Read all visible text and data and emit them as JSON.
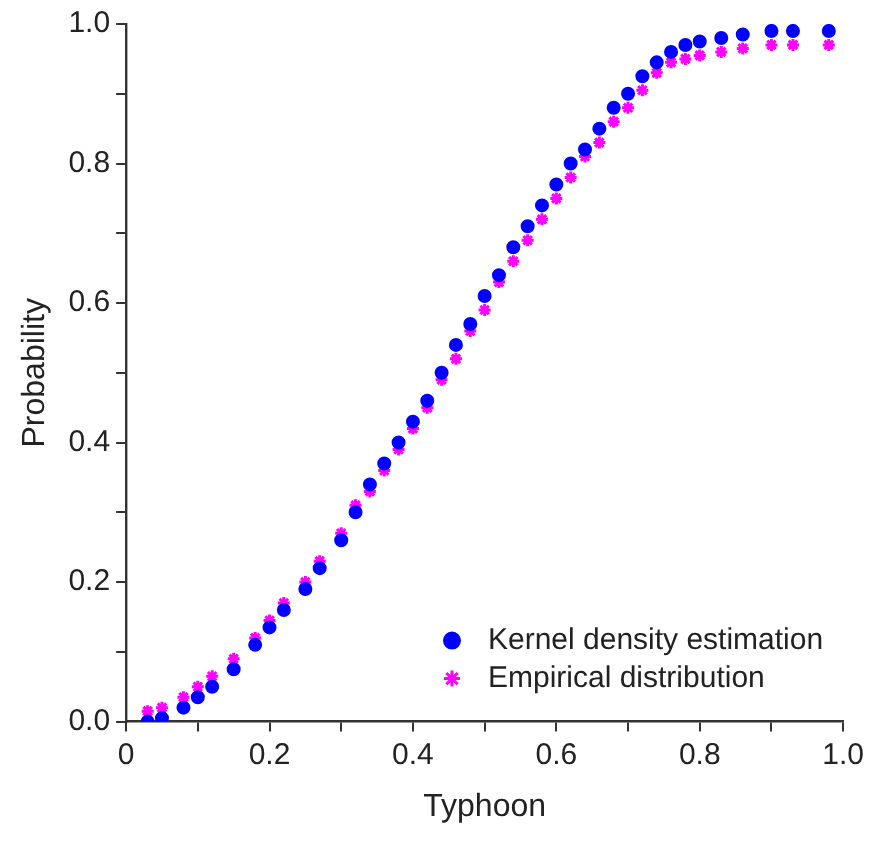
{
  "chart_data": {
    "type": "scatter",
    "xlabel": "Typhoon",
    "ylabel": "Probability",
    "xlim": [
      0,
      1
    ],
    "ylim": [
      0,
      1
    ],
    "xticks": [
      0,
      {
        "value": 0.1,
        "label": null
      },
      {
        "value": 0.2,
        "label": "0.2"
      },
      {
        "value": 0.3,
        "label": null
      },
      {
        "value": 0.4,
        "label": "0.4"
      },
      {
        "value": 0.5,
        "label": null
      },
      {
        "value": 0.6,
        "label": "0.6"
      },
      {
        "value": 0.7,
        "label": null
      },
      {
        "value": 0.8,
        "label": "0.8"
      },
      {
        "value": 0.9,
        "label": null
      },
      {
        "value": 1,
        "label": "1.0"
      }
    ],
    "yticks": [
      {
        "value": 0,
        "label": "0.0"
      },
      {
        "value": 0.1,
        "label": null
      },
      {
        "value": 0.2,
        "label": "0.2"
      },
      {
        "value": 0.3,
        "label": null
      },
      {
        "value": 0.4,
        "label": "0.4"
      },
      {
        "value": 0.5,
        "label": null
      },
      {
        "value": 0.6,
        "label": "0.6"
      },
      {
        "value": 0.7,
        "label": null
      },
      {
        "value": 0.8,
        "label": "0.8"
      },
      {
        "value": 0.9,
        "label": null
      },
      {
        "value": 1,
        "label": "1.0"
      }
    ],
    "grid": false,
    "legend": "bottom right",
    "series": [
      {
        "name": "Kernel density estimation",
        "color": "#0000ff",
        "marker": "circle",
        "x": [
          0.03,
          0.05,
          0.08,
          0.1,
          0.12,
          0.15,
          0.18,
          0.2,
          0.22,
          0.25,
          0.27,
          0.3,
          0.32,
          0.34,
          0.36,
          0.38,
          0.4,
          0.42,
          0.44,
          0.46,
          0.48,
          0.5,
          0.52,
          0.54,
          0.56,
          0.58,
          0.6,
          0.62,
          0.64,
          0.66,
          0.68,
          0.7,
          0.72,
          0.74,
          0.76,
          0.78,
          0.8,
          0.83,
          0.86,
          0.9,
          0.93,
          0.98
        ],
        "values": [
          0,
          0.005,
          0.02,
          0.035,
          0.05,
          0.075,
          0.11,
          0.135,
          0.16,
          0.19,
          0.22,
          0.26,
          0.3,
          0.34,
          0.37,
          0.4,
          0.43,
          0.46,
          0.5,
          0.54,
          0.57,
          0.61,
          0.64,
          0.68,
          0.71,
          0.74,
          0.77,
          0.8,
          0.82,
          0.85,
          0.88,
          0.9,
          0.925,
          0.945,
          0.96,
          0.97,
          0.975,
          0.98,
          0.985,
          0.99,
          0.99,
          0.99
        ]
      },
      {
        "name": "Empirical distribution",
        "color": "#ff00ff",
        "marker": "cross",
        "x": [
          0.03,
          0.05,
          0.08,
          0.1,
          0.12,
          0.15,
          0.18,
          0.2,
          0.22,
          0.25,
          0.27,
          0.3,
          0.32,
          0.34,
          0.36,
          0.38,
          0.4,
          0.42,
          0.44,
          0.46,
          0.48,
          0.5,
          0.52,
          0.54,
          0.56,
          0.58,
          0.6,
          0.62,
          0.64,
          0.66,
          0.68,
          0.7,
          0.72,
          0.74,
          0.76,
          0.78,
          0.8,
          0.83,
          0.86,
          0.9,
          0.93,
          0.98
        ],
        "values": [
          0.015,
          0.02,
          0.035,
          0.05,
          0.065,
          0.09,
          0.12,
          0.145,
          0.17,
          0.2,
          0.23,
          0.27,
          0.31,
          0.33,
          0.36,
          0.39,
          0.42,
          0.45,
          0.49,
          0.52,
          0.56,
          0.59,
          0.63,
          0.66,
          0.69,
          0.72,
          0.75,
          0.78,
          0.81,
          0.83,
          0.86,
          0.88,
          0.905,
          0.93,
          0.945,
          0.95,
          0.955,
          0.96,
          0.965,
          0.97,
          0.97,
          0.97
        ]
      }
    ]
  }
}
